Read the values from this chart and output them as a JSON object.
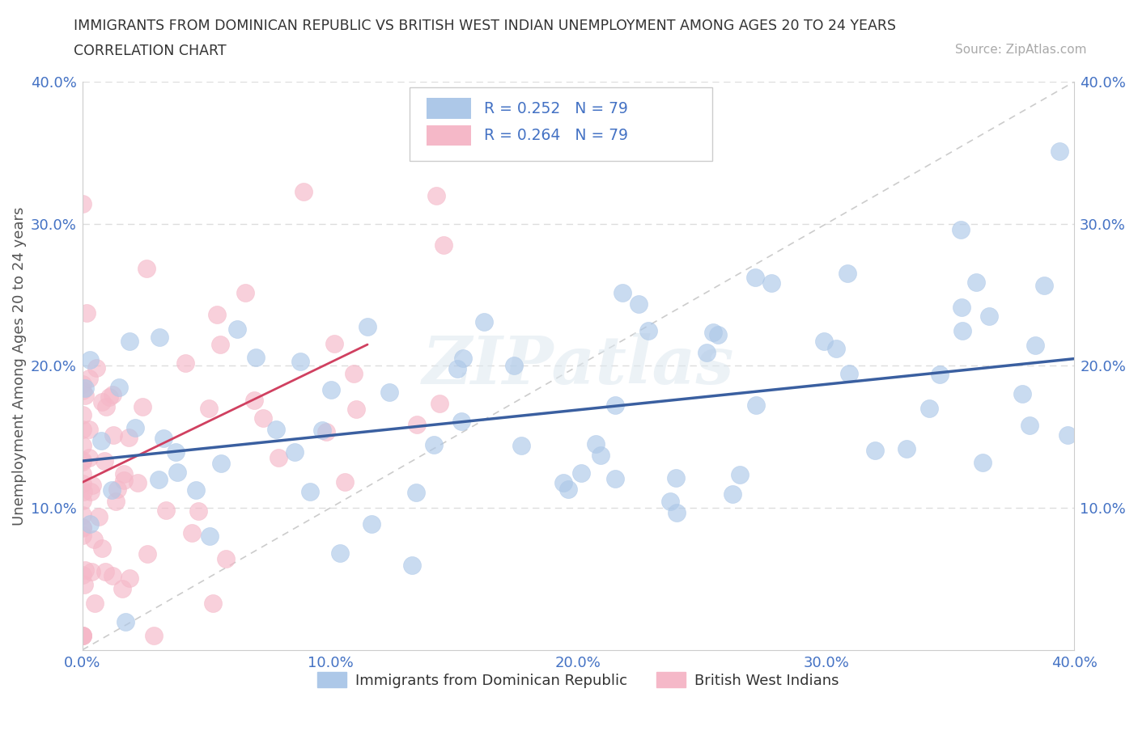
{
  "title": "IMMIGRANTS FROM DOMINICAN REPUBLIC VS BRITISH WEST INDIAN UNEMPLOYMENT AMONG AGES 20 TO 24 YEARS",
  "subtitle": "CORRELATION CHART",
  "source": "Source: ZipAtlas.com",
  "ylabel": "Unemployment Among Ages 20 to 24 years",
  "watermark": "ZIPatlas",
  "legend_blue_r": "R = 0.252",
  "legend_blue_n": "N = 79",
  "legend_pink_r": "R = 0.264",
  "legend_pink_n": "N = 79",
  "legend_blue_label": "Immigrants from Dominican Republic",
  "legend_pink_label": "British West Indians",
  "blue_scatter_color": "#adc8e8",
  "blue_scatter_edge": "#adc8e8",
  "pink_scatter_color": "#f5b8c8",
  "pink_scatter_edge": "#f5b8c8",
  "blue_line_color": "#3a5fa0",
  "pink_line_color": "#d04060",
  "diagonal_line_color": "#cccccc",
  "axis_label_color": "#4472c4",
  "tick_color": "#4472c4",
  "grid_color": "#dddddd",
  "xmin": 0.0,
  "xmax": 0.4,
  "ymin": 0.0,
  "ymax": 0.4,
  "blue_trend_x0": 0.0,
  "blue_trend_y0": 0.133,
  "blue_trend_x1": 0.4,
  "blue_trend_y1": 0.205,
  "pink_trend_x0": 0.0,
  "pink_trend_y0": 0.118,
  "pink_trend_x1": 0.115,
  "pink_trend_y1": 0.215,
  "blue_seed": 42,
  "pink_seed": 77
}
